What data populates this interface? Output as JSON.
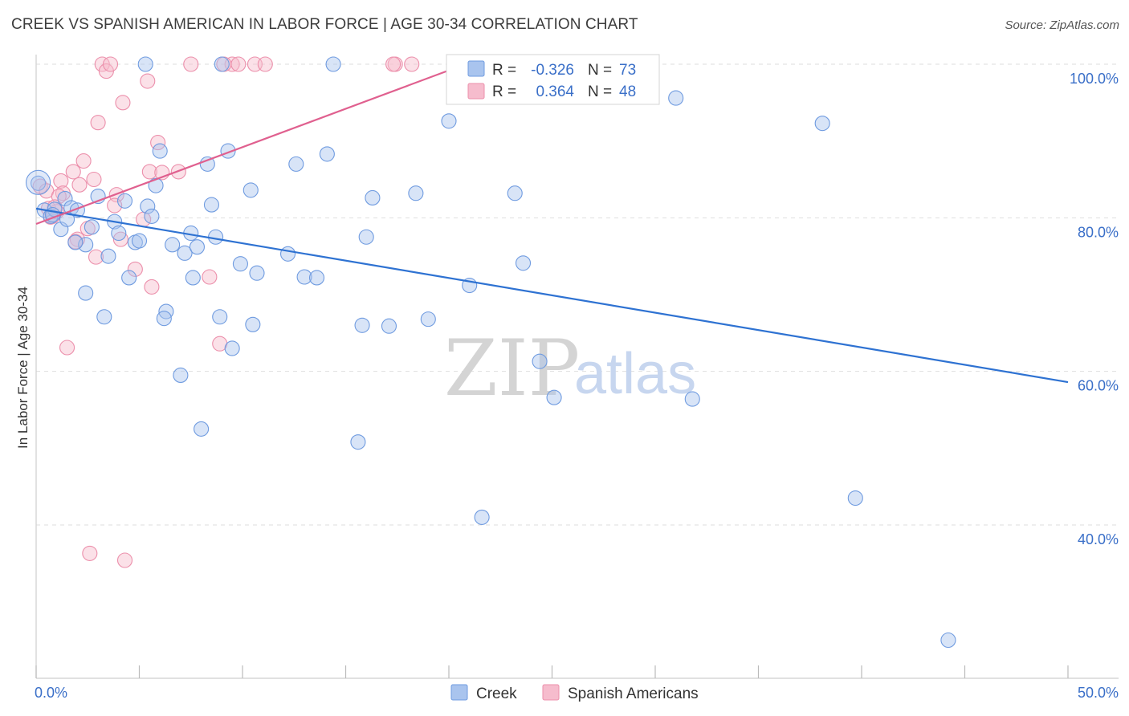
{
  "title": "CREEK VS SPANISH AMERICAN IN LABOR FORCE | AGE 30-34 CORRELATION CHART",
  "source": "Source: ZipAtlas.com",
  "watermark": {
    "part1": "ZIP",
    "part2": "atlas"
  },
  "colors": {
    "creek_fill": "#a9c4ee",
    "creek_stroke": "#6f9be0",
    "creek_line": "#2e72d2",
    "spanish_fill": "#f6bccd",
    "spanish_stroke": "#ec8fab",
    "spanish_line": "#e0608f",
    "grid": "#dedede",
    "axis_text": "#3a6fc8"
  },
  "legend": {
    "rows": [
      {
        "r_label": "R =",
        "r_value": "-0.326",
        "n_label": "N =",
        "n_value": "73"
      },
      {
        "r_label": "R =",
        "r_value": "0.364",
        "n_label": "N =",
        "n_value": "48"
      }
    ],
    "bottom": [
      "Creek",
      "Spanish Americans"
    ]
  },
  "chart_data": {
    "type": "scatter",
    "title": "CREEK VS SPANISH AMERICAN IN LABOR FORCE | AGE 30-34 CORRELATION CHART",
    "xlabel": "",
    "ylabel": "In Labor Force | Age 30-34",
    "xlim": [
      0,
      50
    ],
    "ylim": [
      20,
      102
    ],
    "x_tick_labels": [
      "0.0%",
      "50.0%"
    ],
    "y_ticks": [
      40,
      60,
      80,
      100
    ],
    "y_tick_labels": [
      "40.0%",
      "60.0%",
      "80.0%",
      "100.0%"
    ],
    "series": [
      {
        "name": "Creek",
        "R": -0.326,
        "N": 73,
        "trend": {
          "x": [
            0,
            50
          ],
          "y": [
            81.2,
            58.6
          ]
        },
        "points": [
          [
            0.1,
            84.5
          ],
          [
            0.4,
            81
          ],
          [
            0.7,
            80.2
          ],
          [
            0.9,
            81.1
          ],
          [
            1.2,
            78.5
          ],
          [
            1.4,
            82.5
          ],
          [
            1.7,
            81.3
          ],
          [
            2.0,
            81
          ],
          [
            2.4,
            76.5
          ],
          [
            2.7,
            78.8
          ],
          [
            3.0,
            82.8
          ],
          [
            3.5,
            75
          ],
          [
            3.8,
            79.5
          ],
          [
            4.0,
            78
          ],
          [
            4.3,
            82.2
          ],
          [
            4.5,
            72.2
          ],
          [
            4.8,
            76.8
          ],
          [
            5.0,
            77
          ],
          [
            5.3,
            100
          ],
          [
            5.4,
            81.5
          ],
          [
            5.6,
            80.2
          ],
          [
            5.8,
            84.2
          ],
          [
            6.0,
            88.7
          ],
          [
            6.3,
            67.8
          ],
          [
            6.6,
            76.5
          ],
          [
            7.0,
            59.5
          ],
          [
            7.2,
            75.4
          ],
          [
            7.5,
            78
          ],
          [
            7.6,
            72.2
          ],
          [
            7.8,
            76.2
          ],
          [
            8.0,
            52.5
          ],
          [
            8.3,
            87
          ],
          [
            8.5,
            81.7
          ],
          [
            8.7,
            77.5
          ],
          [
            9.0,
            100
          ],
          [
            9.3,
            88.7
          ],
          [
            9.5,
            63
          ],
          [
            9.9,
            74
          ],
          [
            10.4,
            83.6
          ],
          [
            10.7,
            72.8
          ],
          [
            12.2,
            75.3
          ],
          [
            12.6,
            87
          ],
          [
            13.0,
            72.3
          ],
          [
            13.6,
            72.2
          ],
          [
            14.1,
            88.3
          ],
          [
            14.4,
            100
          ],
          [
            15.6,
            50.8
          ],
          [
            15.8,
            66
          ],
          [
            16.0,
            77.5
          ],
          [
            16.3,
            82.6
          ],
          [
            17.1,
            65.9
          ],
          [
            18.4,
            83.2
          ],
          [
            19.0,
            66.8
          ],
          [
            20.0,
            92.6
          ],
          [
            21.0,
            71.2
          ],
          [
            21.6,
            41
          ],
          [
            23.2,
            83.2
          ],
          [
            23.6,
            74.1
          ],
          [
            24.4,
            61.3
          ],
          [
            25.1,
            56.6
          ],
          [
            31.0,
            95.6
          ],
          [
            31.8,
            56.4
          ],
          [
            38.1,
            92.3
          ],
          [
            39.7,
            43.5
          ],
          [
            44.2,
            25
          ],
          [
            1.5,
            79.8
          ],
          [
            3.3,
            67.1
          ],
          [
            6.2,
            66.9
          ],
          [
            8.9,
            67.1
          ],
          [
            10.5,
            66.1
          ],
          [
            2.4,
            70.2
          ],
          [
            1.9,
            76.8
          ],
          [
            0.8,
            80.4
          ]
        ]
      },
      {
        "name": "Spanish Americans",
        "R": 0.364,
        "N": 48,
        "trend": {
          "x": [
            0,
            20.8
          ],
          "y": [
            79.2,
            100
          ]
        },
        "points": [
          [
            0.2,
            84.1
          ],
          [
            0.5,
            83.5
          ],
          [
            0.6,
            81.2
          ],
          [
            0.7,
            80.1
          ],
          [
            0.8,
            80.2
          ],
          [
            1.0,
            80.8
          ],
          [
            1.2,
            84.8
          ],
          [
            1.3,
            83.2
          ],
          [
            1.5,
            63.1
          ],
          [
            1.8,
            86
          ],
          [
            2.0,
            77.2
          ],
          [
            2.1,
            84.3
          ],
          [
            2.3,
            87.4
          ],
          [
            2.6,
            36.3
          ],
          [
            2.8,
            85
          ],
          [
            3.0,
            92.4
          ],
          [
            3.2,
            100
          ],
          [
            3.4,
            99.1
          ],
          [
            3.6,
            100
          ],
          [
            3.9,
            83
          ],
          [
            4.1,
            77.2
          ],
          [
            4.2,
            95
          ],
          [
            4.3,
            35.4
          ],
          [
            4.8,
            73.3
          ],
          [
            5.2,
            79.8
          ],
          [
            5.4,
            97.8
          ],
          [
            5.5,
            86
          ],
          [
            5.6,
            71
          ],
          [
            5.9,
            89.8
          ],
          [
            6.1,
            85.9
          ],
          [
            6.9,
            86
          ],
          [
            7.5,
            100
          ],
          [
            8.4,
            72.3
          ],
          [
            8.9,
            63.6
          ],
          [
            9.5,
            100
          ],
          [
            9.8,
            100
          ],
          [
            10.6,
            100
          ],
          [
            11.1,
            100
          ],
          [
            17.4,
            100
          ],
          [
            18.2,
            100
          ],
          [
            1.9,
            76.9
          ],
          [
            2.5,
            78.6
          ],
          [
            1.1,
            82.8
          ],
          [
            0.9,
            81.4
          ],
          [
            3.8,
            81.6
          ],
          [
            2.9,
            74.9
          ],
          [
            9.1,
            100
          ],
          [
            17.3,
            100
          ]
        ]
      }
    ]
  }
}
